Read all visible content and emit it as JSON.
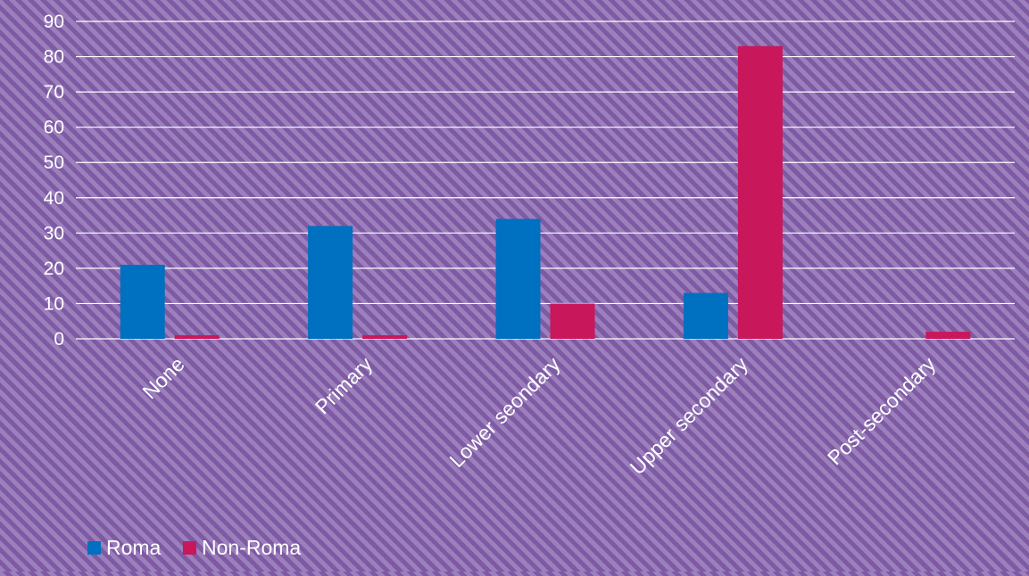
{
  "chart_data": {
    "type": "bar",
    "categories": [
      "None",
      "Primary",
      "Lower seondary",
      "Upper secondary",
      "Post-secondary"
    ],
    "series": [
      {
        "name": "Roma",
        "values": [
          21,
          32,
          34,
          13,
          0
        ],
        "color": "#0070c0"
      },
      {
        "name": "Non-Roma",
        "values": [
          1,
          1,
          10,
          83,
          2
        ],
        "color": "#c8175a"
      }
    ],
    "yticks": [
      "0",
      "10",
      "20",
      "30",
      "40",
      "50",
      "60",
      "70",
      "80",
      "90"
    ],
    "ylim": [
      0,
      90
    ],
    "grid": true,
    "legend_position": "bottom-left",
    "gridline_color": "#ffffff",
    "label_color": "#ffffff"
  }
}
